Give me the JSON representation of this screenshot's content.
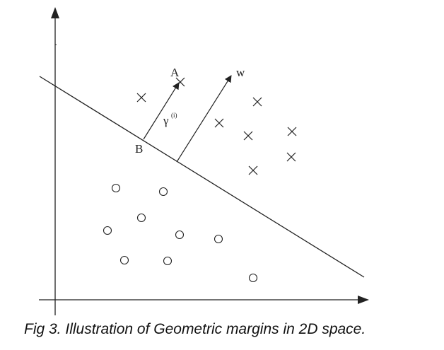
{
  "labels": {
    "point_a": "A",
    "point_b": "B",
    "vector_w": "w",
    "gamma": "γ",
    "gamma_superscript": "(i)"
  },
  "caption": "Fig 3. Illustration of Geometric margins in 2D space.",
  "positive_markers": "×",
  "negative_markers": "○",
  "colors": {
    "ink": "#222222",
    "background": "#ffffff"
  }
}
